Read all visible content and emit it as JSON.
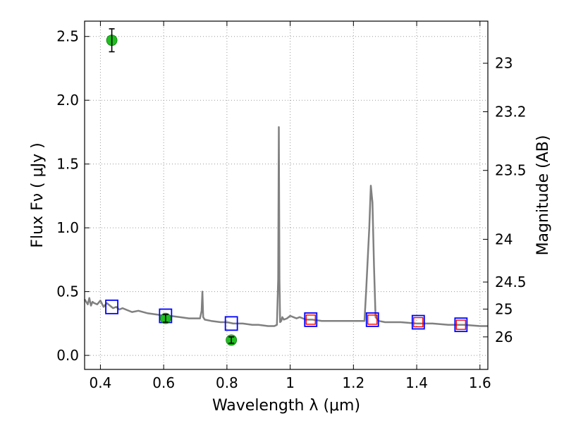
{
  "chart_data": {
    "type": "scatter",
    "title": "",
    "xlabel": "Wavelength  λ (μm)",
    "ylabel": "Flux  Fν  ( μJy )",
    "y2label": "Magnitude (AB)",
    "xlim": [
      0.35,
      1.625
    ],
    "ylim": [
      -0.11,
      2.62
    ],
    "grid": true,
    "x_ticks": [
      0.4,
      0.6,
      0.8,
      1.0,
      1.2,
      1.4,
      1.6
    ],
    "x_tick_labels": [
      "0.4",
      "0.6",
      "0.8",
      "1",
      "1.2",
      "1.4",
      "1.6"
    ],
    "y_ticks": [
      0.0,
      0.5,
      1.0,
      1.5,
      2.0,
      2.5
    ],
    "y_tick_labels": [
      "0.0",
      "0.5",
      "1.0",
      "1.5",
      "2.0",
      "2.5"
    ],
    "y2_ticks": [
      {
        "label": "23",
        "flux": 2.29
      },
      {
        "label": "23.2",
        "flux": 1.91
      },
      {
        "label": "23.5",
        "flux": 1.45
      },
      {
        "label": "24",
        "flux": 0.91
      },
      {
        "label": "24.5",
        "flux": 0.575
      },
      {
        "label": "25",
        "flux": 0.363
      },
      {
        "label": "26",
        "flux": 0.145
      }
    ],
    "colors": {
      "model": "#808080",
      "observed": "#1fbf1f",
      "model_photometry_blue": "#0000ff",
      "model_photometry_red": "#ff0000",
      "errorbar": "#000000",
      "grid": "#9a9a9a"
    },
    "series": [
      {
        "name": "Model SED spectrum",
        "type": "line",
        "x": [
          0.35,
          0.36,
          0.365,
          0.37,
          0.375,
          0.38,
          0.39,
          0.4,
          0.41,
          0.42,
          0.43,
          0.44,
          0.45,
          0.46,
          0.47,
          0.48,
          0.5,
          0.52,
          0.55,
          0.58,
          0.6,
          0.62,
          0.65,
          0.68,
          0.7,
          0.715,
          0.72,
          0.7225,
          0.725,
          0.73,
          0.75,
          0.78,
          0.8,
          0.82,
          0.85,
          0.88,
          0.9,
          0.93,
          0.95,
          0.958,
          0.962,
          0.964,
          0.966,
          0.968,
          0.972,
          0.975,
          0.98,
          0.99,
          1.0,
          1.01,
          1.02,
          1.03,
          1.04,
          1.05,
          1.07,
          1.1,
          1.15,
          1.2,
          1.235,
          1.24,
          1.25,
          1.255,
          1.26,
          1.265,
          1.27,
          1.28,
          1.3,
          1.35,
          1.4,
          1.45,
          1.5,
          1.55,
          1.6,
          1.625
        ],
        "y": [
          0.44,
          0.4,
          0.45,
          0.39,
          0.42,
          0.41,
          0.4,
          0.43,
          0.38,
          0.41,
          0.39,
          0.37,
          0.38,
          0.36,
          0.37,
          0.36,
          0.34,
          0.35,
          0.33,
          0.32,
          0.31,
          0.31,
          0.3,
          0.29,
          0.29,
          0.29,
          0.35,
          0.5,
          0.3,
          0.28,
          0.27,
          0.26,
          0.26,
          0.25,
          0.25,
          0.24,
          0.24,
          0.23,
          0.23,
          0.24,
          0.6,
          1.79,
          0.6,
          0.26,
          0.27,
          0.3,
          0.28,
          0.29,
          0.31,
          0.3,
          0.29,
          0.3,
          0.29,
          0.28,
          0.28,
          0.27,
          0.27,
          0.27,
          0.27,
          0.5,
          1.0,
          1.33,
          1.2,
          0.7,
          0.3,
          0.27,
          0.26,
          0.26,
          0.25,
          0.25,
          0.24,
          0.24,
          0.23,
          0.23
        ]
      },
      {
        "name": "Model photometry (blue)",
        "type": "scatter",
        "marker": "square",
        "x": [
          0.436,
          0.606,
          0.814,
          1.065,
          1.26,
          1.405,
          1.54
        ],
        "y": [
          0.38,
          0.31,
          0.25,
          0.28,
          0.28,
          0.26,
          0.24
        ]
      },
      {
        "name": "Model photometry (red)",
        "type": "scatter",
        "marker": "square",
        "x": [
          1.065,
          1.26,
          1.405,
          1.54
        ],
        "y": [
          0.28,
          0.28,
          0.26,
          0.24
        ]
      },
      {
        "name": "Observed photometry",
        "type": "scatter",
        "marker": "circle",
        "x": [
          0.436,
          0.606,
          0.814
        ],
        "y": [
          2.47,
          0.29,
          0.12
        ],
        "yerr": [
          0.09,
          0.03,
          0.025
        ]
      }
    ]
  }
}
